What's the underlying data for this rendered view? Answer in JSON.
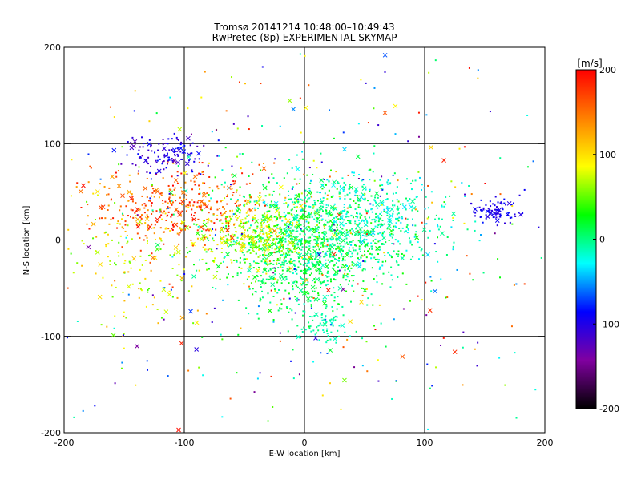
{
  "chart_data": {
    "type": "scatter",
    "title": "Tromsø 20141214 10:48:00–10:49:43",
    "subtitle": "RwPretec (8p) EXPERIMENTAL SKYMAP",
    "xlabel": "E-W location [km]",
    "ylabel": "N-S location [km]",
    "xlim": [
      -200,
      200
    ],
    "ylim": [
      -200,
      200
    ],
    "xticks": [
      "-200",
      "-100",
      "0",
      "100",
      "200"
    ],
    "yticks": [
      "-200",
      "-100",
      "0",
      "100",
      "200"
    ],
    "grid_values": [
      -100,
      0,
      100
    ],
    "colorbar": {
      "label": "[m/s]",
      "min": -200,
      "max": 200,
      "ticks": [
        "-200",
        "-100",
        "0",
        "100",
        "200"
      ],
      "colormap": [
        "#000000",
        "#8000a0",
        "#0000ff",
        "#00ffff",
        "#00ff00",
        "#ffff00",
        "#ff8000",
        "#ff0000"
      ]
    },
    "series": [
      {
        "cx": 10,
        "cy": 5,
        "sx": 40,
        "sy": 28,
        "n": 900,
        "vmin": -20,
        "vmax": 40
      },
      {
        "cx": -5,
        "cy": -30,
        "sx": 25,
        "sy": 22,
        "n": 300,
        "vmin": -10,
        "vmax": 30
      },
      {
        "cx": -40,
        "cy": 5,
        "sx": 25,
        "sy": 18,
        "n": 350,
        "vmin": 40,
        "vmax": 110
      },
      {
        "cx": -105,
        "cy": 35,
        "sx": 35,
        "sy": 18,
        "n": 350,
        "vmin": 120,
        "vmax": 200
      },
      {
        "cx": -115,
        "cy": 90,
        "sx": 18,
        "sy": 10,
        "n": 120,
        "vmin": -130,
        "vmax": -80
      },
      {
        "cx": 50,
        "cy": 20,
        "sx": 35,
        "sy": 25,
        "n": 350,
        "vmin": -40,
        "vmax": 0
      },
      {
        "cx": 160,
        "cy": 30,
        "sx": 12,
        "sy": 6,
        "n": 80,
        "vmin": -110,
        "vmax": -80
      },
      {
        "cx": 15,
        "cy": -90,
        "sx": 10,
        "sy": 12,
        "n": 80,
        "vmin": -20,
        "vmax": 5
      },
      {
        "cx": -140,
        "cy": -20,
        "sx": 30,
        "sy": 40,
        "n": 150,
        "vmin": 40,
        "vmax": 130
      },
      {
        "cx": 0,
        "cy": 0,
        "sx": 110,
        "sy": 100,
        "n": 500,
        "vmin": -150,
        "vmax": 200
      }
    ]
  }
}
